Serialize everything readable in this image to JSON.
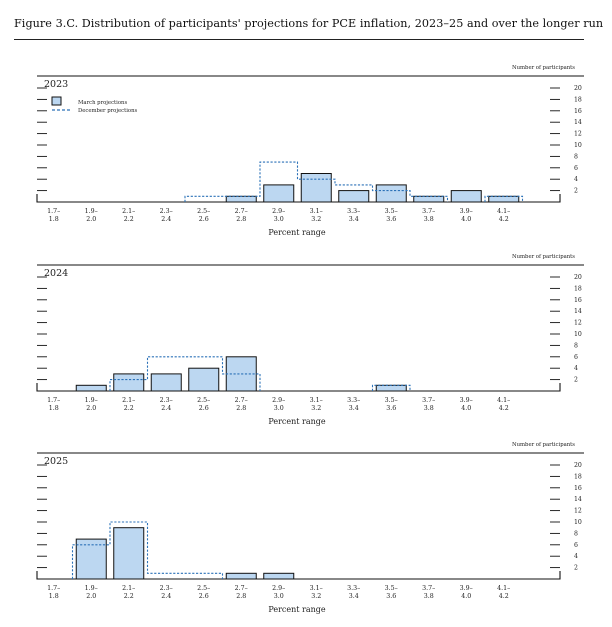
{
  "figure_title": "Figure 3.C. Distribution of participants' projections for PCE inflation, 2023–25 and over the longer run",
  "colors": {
    "bar_fill": "#bcd7f1",
    "bar_stroke": "#111111",
    "dash": "#2c72b8",
    "axis": "#111111"
  },
  "chart_data": [
    {
      "type": "bar",
      "title": "2023",
      "xlabel": "Percent range",
      "ylabel": "Number of participants",
      "ylim": [
        0,
        20
      ],
      "y_ticks": [
        "2",
        "4",
        "6",
        "8",
        "10",
        "12",
        "14",
        "16",
        "18",
        "20"
      ],
      "categories": [
        "1.7–\n1.8",
        "1.9–\n2.0",
        "2.1–\n2.2",
        "2.3–\n2.4",
        "2.5–\n2.6",
        "2.7–\n2.8",
        "2.9–\n3.0",
        "3.1–\n3.2",
        "3.3–\n3.4",
        "3.5–\n3.6",
        "3.7–\n3.8",
        "3.9–\n4.0",
        "4.1–\n4.2"
      ],
      "series": [
        {
          "name": "March projections",
          "values": [
            0,
            0,
            0,
            0,
            0,
            1,
            3,
            5,
            2,
            3,
            1,
            2,
            1
          ]
        },
        {
          "name": "December projections",
          "values": [
            0,
            0,
            0,
            0,
            1,
            1,
            7,
            4,
            3,
            2,
            1,
            0,
            1
          ]
        }
      ],
      "legend": "top-left"
    },
    {
      "type": "bar",
      "title": "2024",
      "xlabel": "Percent range",
      "ylabel": "Number of participants",
      "ylim": [
        0,
        20
      ],
      "y_ticks": [
        "2",
        "4",
        "6",
        "8",
        "10",
        "12",
        "14",
        "16",
        "18",
        "20"
      ],
      "categories": [
        "1.7–\n1.8",
        "1.9–\n2.0",
        "2.1–\n2.2",
        "2.3–\n2.4",
        "2.5–\n2.6",
        "2.7–\n2.8",
        "2.9–\n3.0",
        "3.1–\n3.2",
        "3.3–\n3.4",
        "3.5–\n3.6",
        "3.7–\n3.8",
        "3.9–\n4.0",
        "4.1–\n4.2"
      ],
      "series": [
        {
          "name": "March projections",
          "values": [
            0,
            1,
            3,
            3,
            4,
            6,
            0,
            0,
            0,
            1,
            0,
            0,
            0
          ]
        },
        {
          "name": "December projections",
          "values": [
            0,
            0,
            2,
            6,
            6,
            3,
            0,
            0,
            0,
            1,
            0,
            0,
            0
          ]
        }
      ]
    },
    {
      "type": "bar",
      "title": "2025",
      "xlabel": "Percent range",
      "ylabel": "Number of participants",
      "ylim": [
        0,
        20
      ],
      "y_ticks": [
        "2",
        "4",
        "6",
        "8",
        "10",
        "12",
        "14",
        "16",
        "18",
        "20"
      ],
      "categories": [
        "1.7–\n1.8",
        "1.9–\n2.0",
        "2.1–\n2.2",
        "2.3–\n2.4",
        "2.5–\n2.6",
        "2.7–\n2.8",
        "2.9–\n3.0",
        "3.1–\n3.2",
        "3.3–\n3.4",
        "3.5–\n3.6",
        "3.7–\n3.8",
        "3.9–\n4.0",
        "4.1–\n4.2"
      ],
      "series": [
        {
          "name": "March projections",
          "values": [
            0,
            7,
            9,
            0,
            0,
            1,
            1,
            0,
            0,
            0,
            0,
            0,
            0
          ]
        },
        {
          "name": "December projections",
          "values": [
            0,
            6,
            10,
            1,
            1,
            0,
            0,
            0,
            0,
            0,
            0,
            0,
            0
          ]
        }
      ]
    }
  ]
}
